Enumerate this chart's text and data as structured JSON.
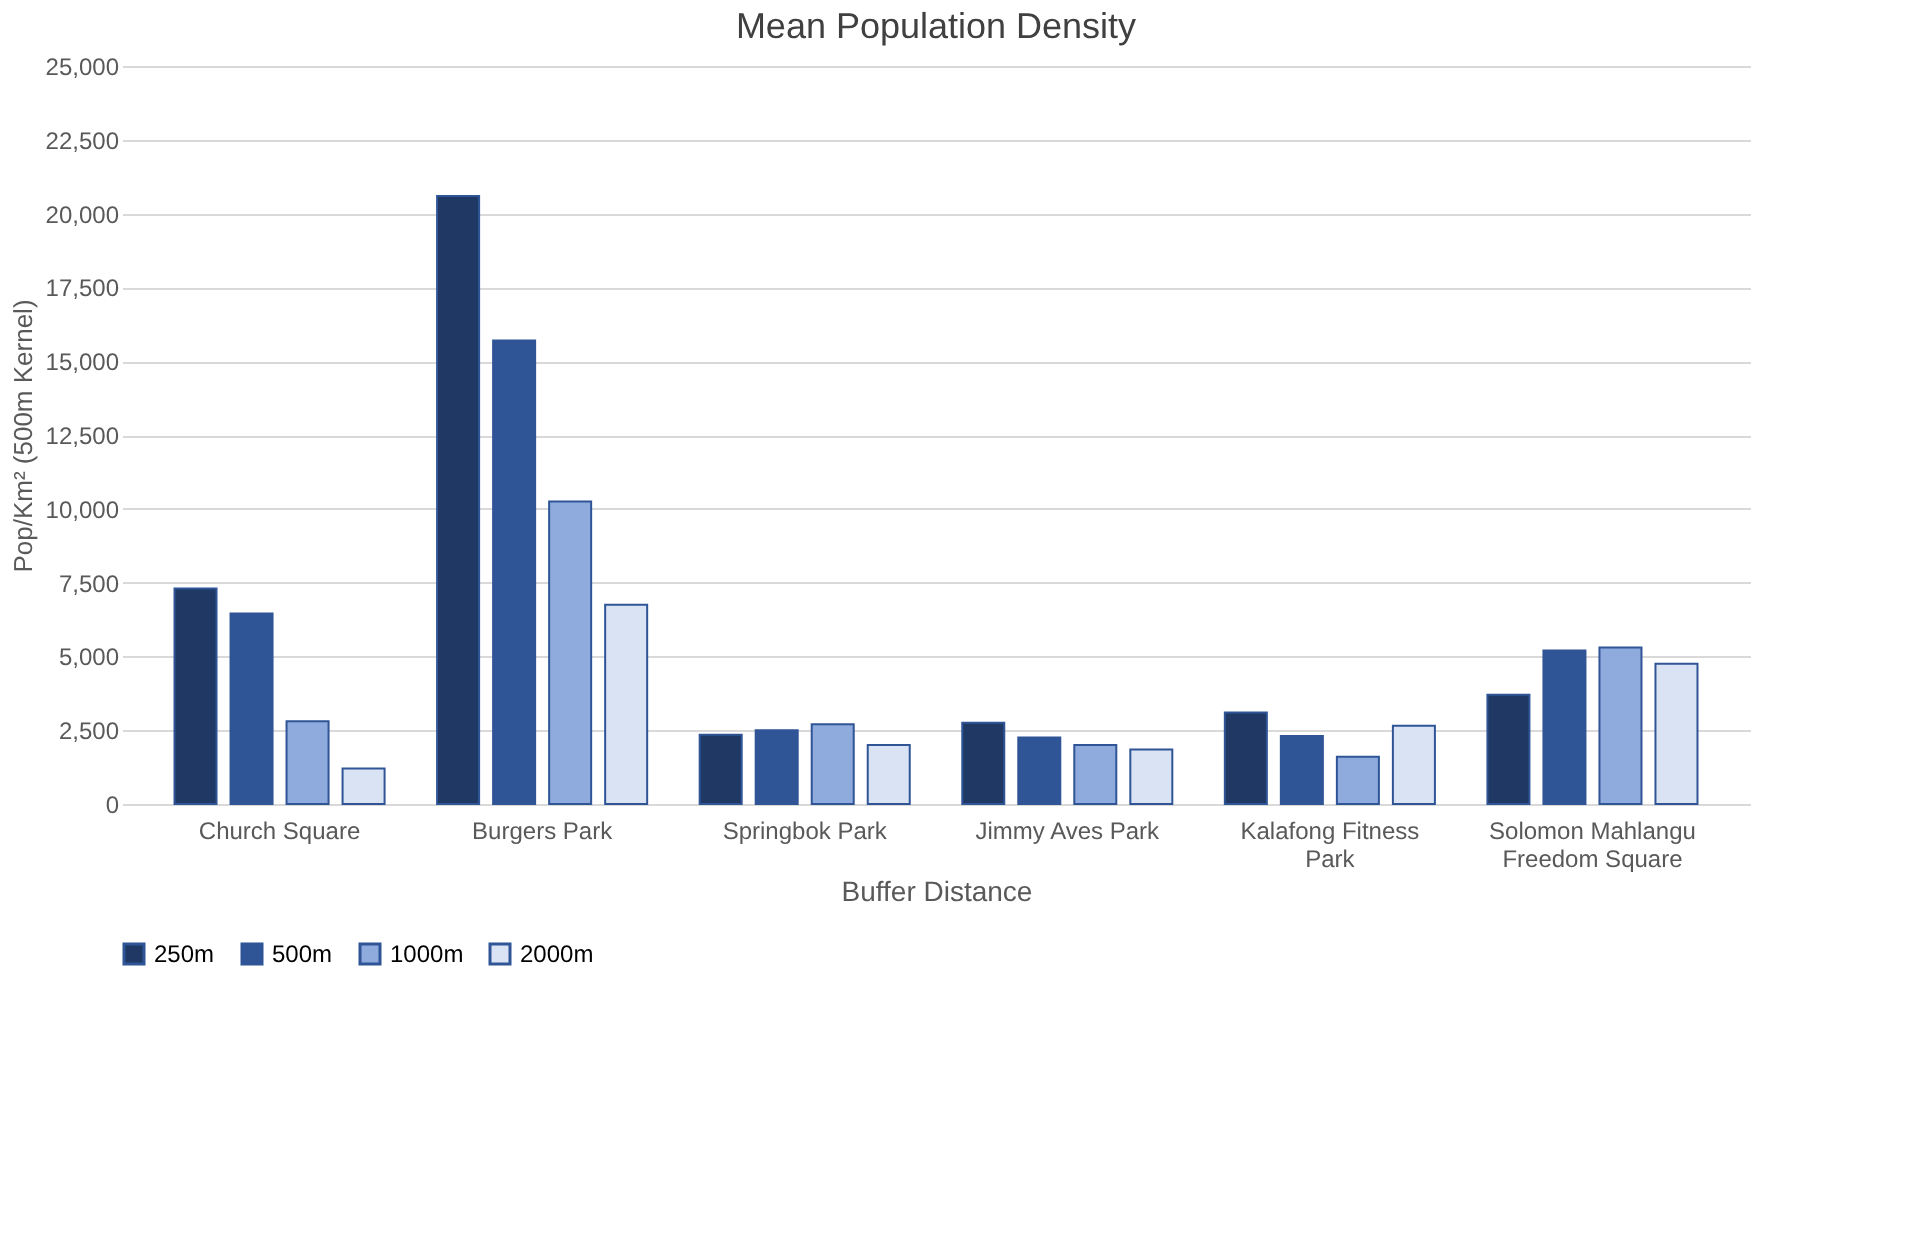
{
  "chart_data": {
    "type": "bar",
    "title": "Mean Population Density",
    "xlabel": "Buffer Distance",
    "ylabel": "Pop/Km² (500m Kernel)",
    "categories": [
      "Church Square",
      "Burgers Park",
      "Springbok Park",
      "Jimmy Aves Park",
      "Kalafong Fitness Park",
      "Solomon Mahlangu Freedom Square"
    ],
    "series": [
      {
        "name": "250m",
        "color": "#1f3864",
        "values": [
          7300,
          20600,
          2350,
          2750,
          3100,
          3700
        ]
      },
      {
        "name": "500m",
        "color": "#2f5597",
        "values": [
          6450,
          15700,
          2500,
          2250,
          2300,
          5200
        ]
      },
      {
        "name": "1000m",
        "color": "#8faadc",
        "values": [
          2800,
          10250,
          2700,
          2000,
          1600,
          5300
        ]
      },
      {
        "name": "2000m",
        "color": "#dae3f3",
        "values": [
          1200,
          6750,
          2000,
          1850,
          2650,
          4750
        ]
      }
    ],
    "ylim": [
      0,
      25000
    ],
    "yticks": [
      {
        "value": 0,
        "label": "0"
      },
      {
        "value": 2500,
        "label": "2,500"
      },
      {
        "value": 5000,
        "label": "5,000"
      },
      {
        "value": 7500,
        "label": "7,500"
      },
      {
        "value": 10000,
        "label": "10,000"
      },
      {
        "value": 12500,
        "label": "12,500"
      },
      {
        "value": 15000,
        "label": "15,000"
      },
      {
        "value": 17500,
        "label": "17,500"
      },
      {
        "value": 20000,
        "label": "20,000"
      },
      {
        "value": 22500,
        "label": "22,500"
      },
      {
        "value": 25000,
        "label": "25,000"
      }
    ],
    "grid": "y",
    "legend": "bottom"
  }
}
